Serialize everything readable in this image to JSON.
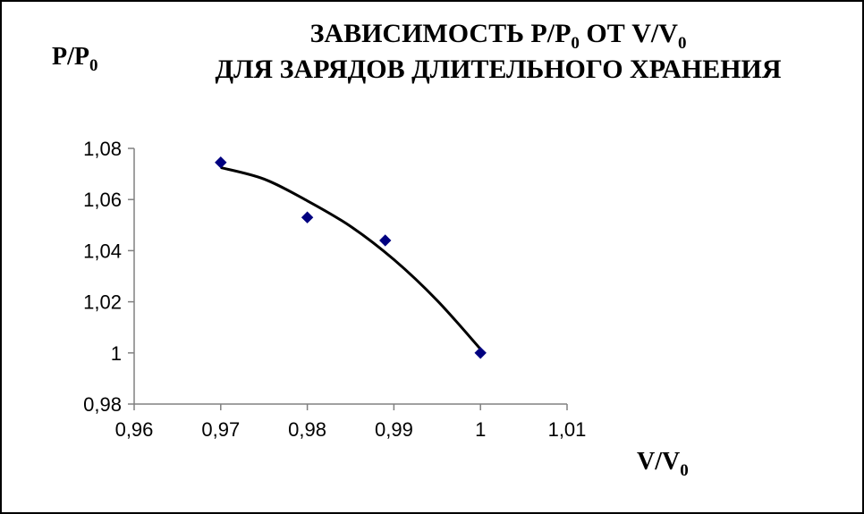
{
  "chart_data": {
    "type": "scatter",
    "title_line1": {
      "before": "ЗАВИСИМОСТЬ P/P",
      "sub1": "0",
      "middle": " ОТ V/V",
      "sub2": "0"
    },
    "title_line2": "ДЛЯ ЗАРЯДОВ ДЛИТЕЛЬНОГО ХРАНЕНИЯ",
    "ylabel": {
      "main": "P/P",
      "sub": "0"
    },
    "xlabel": {
      "main": "V/V",
      "sub": "0"
    },
    "xlim": [
      0.96,
      1.01
    ],
    "ylim": [
      0.98,
      1.08
    ],
    "x_ticks": [
      {
        "value": 0.96,
        "label": "0,96"
      },
      {
        "value": 0.97,
        "label": "0,97"
      },
      {
        "value": 0.98,
        "label": "0,98"
      },
      {
        "value": 0.99,
        "label": "0,99"
      },
      {
        "value": 1.0,
        "label": "1"
      },
      {
        "value": 1.01,
        "label": "1,01"
      }
    ],
    "y_ticks": [
      {
        "value": 0.98,
        "label": "0,98"
      },
      {
        "value": 1.0,
        "label": "1"
      },
      {
        "value": 1.02,
        "label": "1,02"
      },
      {
        "value": 1.04,
        "label": "1,04"
      },
      {
        "value": 1.06,
        "label": "1,06"
      },
      {
        "value": 1.08,
        "label": "1,08"
      }
    ],
    "grid": false,
    "legend": "none",
    "series": [
      {
        "points": [
          {
            "x": 0.97,
            "y": 1.0745
          },
          {
            "x": 0.98,
            "y": 1.053
          },
          {
            "x": 0.989,
            "y": 1.044
          },
          {
            "x": 1.0,
            "y": 1.0
          }
        ],
        "marker": "diamond",
        "color": "#000080"
      }
    ],
    "trendline": {
      "type": "polynomial",
      "color": "#000000",
      "points": [
        {
          "x": 0.97,
          "y": 1.0725
        },
        {
          "x": 0.975,
          "y": 1.068
        },
        {
          "x": 0.98,
          "y": 1.0595
        },
        {
          "x": 0.985,
          "y": 1.0495
        },
        {
          "x": 0.99,
          "y": 1.0365
        },
        {
          "x": 0.995,
          "y": 1.0205
        },
        {
          "x": 1.0,
          "y": 1.0015
        }
      ]
    }
  }
}
